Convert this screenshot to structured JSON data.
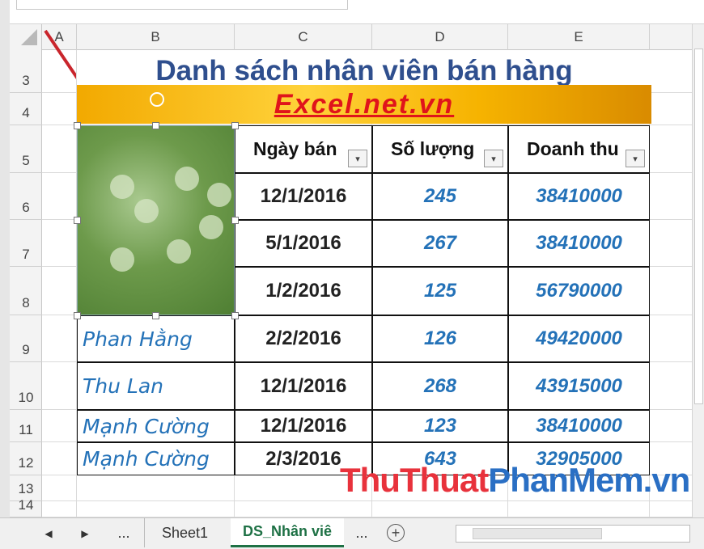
{
  "column_headers": [
    "A",
    "B",
    "C",
    "D",
    "E"
  ],
  "row_headers": [
    "3",
    "4",
    "5",
    "6",
    "7",
    "8",
    "9",
    "10",
    "11",
    "12",
    "13",
    "14"
  ],
  "sheet": {
    "title": "Danh sách nhân viên bán hàng",
    "banner": "Excel.net.vn",
    "table": {
      "headers": [
        "Ngày bán",
        "Số lượng",
        "Doanh thu"
      ],
      "rows": [
        [
          "12/1/2016",
          245,
          38410000
        ],
        [
          "5/1/2016",
          267,
          38410000
        ],
        [
          "1/2/2016",
          125,
          56790000
        ],
        [
          "2/2/2016",
          126,
          49420000
        ],
        [
          "12/1/2016",
          268,
          43915000
        ],
        [
          "12/1/2016",
          123,
          38410000
        ],
        [
          "2/3/2016",
          643,
          32905000
        ]
      ],
      "names": [
        "Phan Hằng",
        "Thu Lan",
        "Mạnh Cường",
        "Mạnh Cường"
      ]
    }
  },
  "watermark": {
    "part1": "ThuThuat",
    "part2": "PhanMem.vn"
  },
  "tabs": [
    "...",
    "Sheet1",
    "DS_Nhân viê",
    "..."
  ]
}
